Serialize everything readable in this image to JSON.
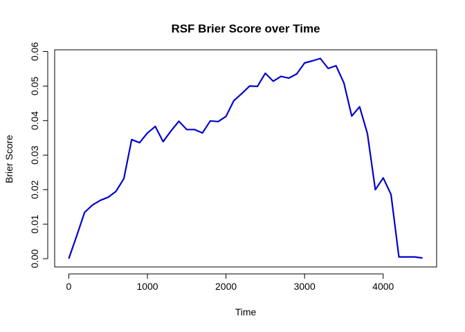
{
  "chart_data": {
    "type": "line",
    "title": "RSF Brier Score over Time",
    "xlabel": "Time",
    "ylabel": "Brier Score",
    "xlim": [
      -180,
      4680
    ],
    "ylim": [
      -0.0024,
      0.0605
    ],
    "x_ticks": [
      0,
      1000,
      2000,
      3000,
      4000
    ],
    "x_tick_labels": [
      "0",
      "1000",
      "2000",
      "3000",
      "4000"
    ],
    "y_ticks": [
      0.0,
      0.01,
      0.02,
      0.03,
      0.04,
      0.05,
      0.06
    ],
    "y_tick_labels": [
      "0.00",
      "0.01",
      "0.02",
      "0.03",
      "0.04",
      "0.05",
      "0.06"
    ],
    "grid": false,
    "series": [
      {
        "color": "#0000CD",
        "x": [
          0,
          100,
          200,
          300,
          400,
          500,
          600,
          700,
          800,
          900,
          1000,
          1100,
          1200,
          1300,
          1400,
          1500,
          1600,
          1700,
          1800,
          1900,
          2000,
          2100,
          2200,
          2300,
          2400,
          2500,
          2600,
          2700,
          2800,
          2900,
          3000,
          3100,
          3200,
          3300,
          3400,
          3500,
          3600,
          3700,
          3800,
          3900,
          4000,
          4100,
          4200,
          4300,
          4400,
          4500
        ],
        "y": [
          0.0,
          0.0066,
          0.0134,
          0.0155,
          0.0169,
          0.0178,
          0.0195,
          0.0232,
          0.0345,
          0.0336,
          0.0364,
          0.0383,
          0.0339,
          0.037,
          0.0398,
          0.0374,
          0.0374,
          0.0364,
          0.0399,
          0.0397,
          0.0412,
          0.0458,
          0.0478,
          0.05,
          0.0499,
          0.0537,
          0.0514,
          0.0528,
          0.0523,
          0.0535,
          0.0567,
          0.0573,
          0.058,
          0.0551,
          0.0559,
          0.0509,
          0.0413,
          0.044,
          0.0362,
          0.02,
          0.0234,
          0.0186,
          0.0005,
          0.0005,
          0.0005,
          0.0002
        ]
      }
    ]
  }
}
